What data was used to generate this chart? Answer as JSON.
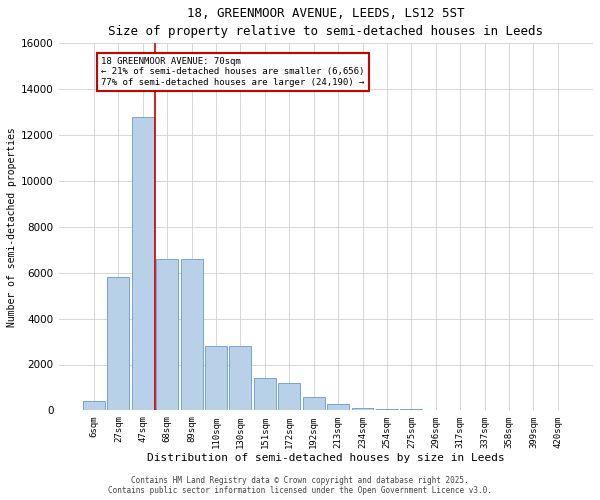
{
  "title_line1": "18, GREENMOOR AVENUE, LEEDS, LS12 5ST",
  "title_line2": "Size of property relative to semi-detached houses in Leeds",
  "xlabel": "Distribution of semi-detached houses by size in Leeds",
  "ylabel": "Number of semi-detached properties",
  "annotation_title": "18 GREENMOOR AVENUE: 70sqm",
  "annotation_line2": "← 21% of semi-detached houses are smaller (6,656)",
  "annotation_line3": "77% of semi-detached houses are larger (24,190) →",
  "property_bin_index": 3,
  "categories": [
    "6sqm",
    "27sqm",
    "47sqm",
    "68sqm",
    "89sqm",
    "110sqm",
    "130sqm",
    "151sqm",
    "172sqm",
    "192sqm",
    "213sqm",
    "234sqm",
    "254sqm",
    "275sqm",
    "296sqm",
    "317sqm",
    "337sqm",
    "358sqm",
    "399sqm",
    "420sqm"
  ],
  "values": [
    400,
    5800,
    12800,
    6600,
    6600,
    2800,
    2800,
    1400,
    1200,
    600,
    300,
    100,
    50,
    50,
    0,
    0,
    0,
    0,
    0,
    0
  ],
  "bar_color": "#b8d0e8",
  "bar_edge_color": "#6699cc",
  "vline_color": "#cc0000",
  "annotation_box_edge_color": "#cc0000",
  "background_color": "#ffffff",
  "grid_color": "#d0d0d0",
  "ylim": [
    0,
    16000
  ],
  "yticks": [
    0,
    2000,
    4000,
    6000,
    8000,
    10000,
    12000,
    14000,
    16000
  ],
  "footer_line1": "Contains HM Land Registry data © Crown copyright and database right 2025.",
  "footer_line2": "Contains public sector information licensed under the Open Government Licence v3.0."
}
